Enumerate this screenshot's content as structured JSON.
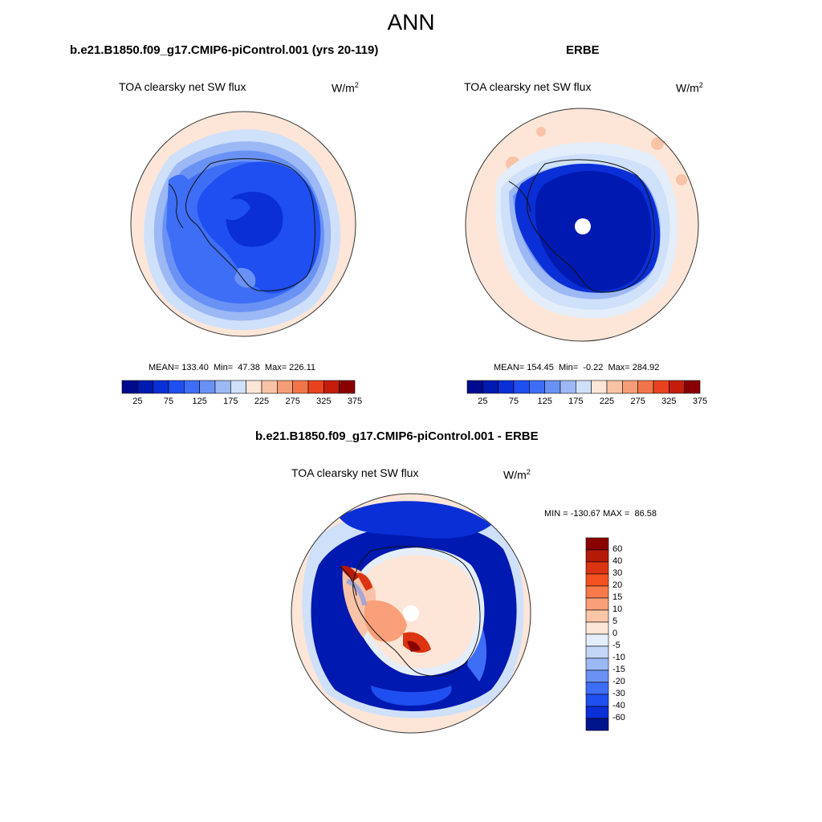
{
  "header": {
    "title": "ANN"
  },
  "panels": [
    {
      "title": "b.e21.B1850.f09_g17.CMIP6-piControl.001 (yrs 20-119)",
      "variable": "TOA clearsky net SW flux",
      "units": "W/m",
      "units_exp": "2",
      "stats": "MEAN= 133.40  Min=  47.38  Max= 226.11",
      "colorbar_ticks": [
        "25",
        "75",
        "125",
        "175",
        "225",
        "275",
        "325",
        "375"
      ]
    },
    {
      "title": "ERBE",
      "variable": "TOA clearsky net SW flux",
      "units": "W/m",
      "units_exp": "2",
      "stats": "MEAN= 154.45  Min=  -0.22  Max= 284.92",
      "colorbar_ticks": [
        "25",
        "75",
        "125",
        "175",
        "225",
        "275",
        "325",
        "375"
      ]
    },
    {
      "title": "b.e21.B1850.f09_g17.CMIP6-piControl.001 - ERBE",
      "variable": "TOA clearsky net SW flux",
      "units": "W/m",
      "units_exp": "2",
      "stats": "MIN = -130.67 MAX =  86.58",
      "colorbar_ticks": [
        "60",
        "40",
        "30",
        "20",
        "15",
        "10",
        "5",
        "0",
        "-5",
        "-10",
        "-15",
        "-20",
        "-30",
        "-40",
        "-60"
      ]
    }
  ],
  "colors": {
    "abs_scale": [
      "#000a8c",
      "#0019b0",
      "#0a2fd6",
      "#1f4ff0",
      "#3d6ef5",
      "#6a92f5",
      "#9cb8f5",
      "#cfe0fa",
      "#fde6d8",
      "#f9c3a7",
      "#f59d79",
      "#f2754a",
      "#e8431f",
      "#c41d0c",
      "#8a0000"
    ],
    "diff_scale": [
      "#8a0000",
      "#b51a08",
      "#dc3410",
      "#f4521f",
      "#f77b4a",
      "#f9a07a",
      "#fbc5a8",
      "#fde6d8",
      "#e4eefa",
      "#c3d6f7",
      "#9cb8f5",
      "#6a92f5",
      "#3d6ef5",
      "#1f4ff0",
      "#0a2fd6",
      "#00158c"
    ]
  }
}
